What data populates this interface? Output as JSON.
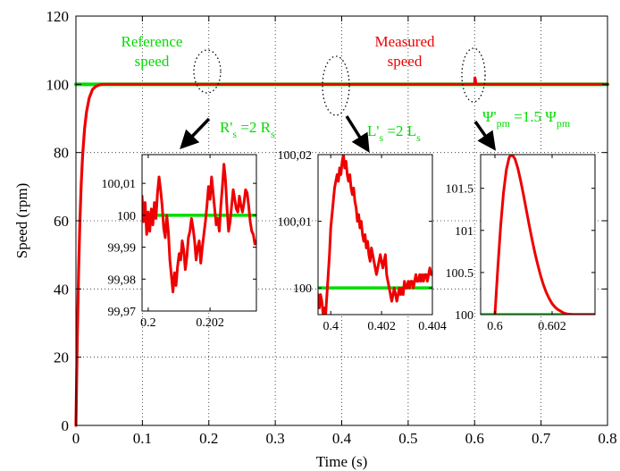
{
  "chart_data": {
    "type": "line",
    "xlabel": "Time (s)",
    "ylabel": "Speed (rpm)",
    "xlim": [
      0,
      0.8
    ],
    "ylim": [
      0,
      120
    ],
    "xticks": [
      0,
      0.1,
      0.2,
      0.3,
      0.4,
      0.5,
      0.6,
      0.7,
      0.8
    ],
    "xtick_labels": [
      "0",
      "0.1",
      "0.2",
      "0.3",
      "0.4",
      "0.5",
      "0.6",
      "0.7",
      "0.8"
    ],
    "yticks": [
      0,
      20,
      40,
      60,
      80,
      100,
      120
    ],
    "ytick_labels": [
      "0",
      "20",
      "40",
      "60",
      "80",
      "100",
      "120"
    ],
    "grid": true,
    "colors": {
      "reference": "#00dd00",
      "measured": "#ee0000",
      "arrow": "#000000"
    },
    "series": [
      {
        "name": "Reference speed",
        "color": "#00dd00",
        "x": [
          0,
          0.8
        ],
        "y": [
          100,
          100
        ]
      },
      {
        "name": "Measured speed",
        "color": "#ee0000",
        "x": [
          0,
          0.002,
          0.004,
          0.006,
          0.008,
          0.01,
          0.013,
          0.016,
          0.02,
          0.025,
          0.03,
          0.035,
          0.04,
          0.05,
          0.6,
          0.6005,
          0.601,
          0.602,
          0.8
        ],
        "y": [
          0,
          25,
          45,
          60,
          71,
          79,
          87,
          92,
          96,
          98.5,
          99.4,
          99.8,
          100,
          100,
          100,
          101.9,
          101.5,
          100,
          100
        ]
      }
    ],
    "annotations": [
      {
        "lines": [
          "Reference",
          "speed"
        ],
        "color": "#00dd00"
      },
      {
        "lines": [
          "Measured",
          "speed"
        ],
        "color": "#ee0000"
      },
      {
        "text": "R'",
        "sub1": "s",
        "mid": " =2 R",
        "sub2": "s",
        "color": "#00dd00"
      },
      {
        "text": "L'",
        "sub1": "s",
        "mid": " =2 L",
        "sub2": "s",
        "color": "#00dd00"
      },
      {
        "text": "Ψ'",
        "sub1": "pm",
        "mid": " =1.5 Ψ",
        "sub2": "pm",
        "color": "#00dd00"
      }
    ],
    "insets": [
      {
        "name": "inset-1",
        "xlim": [
          0.1998,
          0.2035
        ],
        "ylim": [
          99.97,
          100.019
        ],
        "xticks": [
          0.2,
          0.202
        ],
        "xtick_labels": [
          "0.2",
          "0.202"
        ],
        "yticks": [
          99.97,
          99.98,
          99.99,
          100,
          100.01
        ],
        "ytick_labels": [
          "99,97",
          "99,98",
          "99,99",
          "100",
          "100,01"
        ],
        "reference": 100,
        "measured": {
          "x": [
            0.1998,
            0.19985,
            0.1999,
            0.19995,
            0.2,
            0.20005,
            0.2001,
            0.20015,
            0.2002,
            0.20025,
            0.2003,
            0.20035,
            0.2004,
            0.20045,
            0.2005,
            0.20055,
            0.2006,
            0.20065,
            0.2007,
            0.20075,
            0.2008,
            0.20085,
            0.2009,
            0.20095,
            0.201,
            0.20105,
            0.2011,
            0.20115,
            0.2012,
            0.20125,
            0.2013,
            0.20135,
            0.2014,
            0.20145,
            0.2015,
            0.20155,
            0.2016,
            0.20165,
            0.2017,
            0.20175,
            0.2018,
            0.20185,
            0.2019,
            0.20195,
            0.202,
            0.20205,
            0.2021,
            0.20215,
            0.2022,
            0.20225,
            0.2023,
            0.20235,
            0.2024,
            0.20245,
            0.2025,
            0.20255,
            0.2026,
            0.20265,
            0.2027,
            0.20275,
            0.2028,
            0.20285,
            0.2029,
            0.20295,
            0.203,
            0.20305,
            0.2031,
            0.20315,
            0.2032,
            0.20325,
            0.2033,
            0.20335,
            0.2034,
            0.20345,
            0.2035
          ],
          "y": [
            100.006,
            99.998,
            100.004,
            99.994,
            100.001,
            99.995,
            100.002,
            99.997,
            100.004,
            99.999,
            100.007,
            100.012,
            100.008,
            100.003,
            99.996,
            99.993,
            100.0,
            99.995,
            99.986,
            99.981,
            99.976,
            99.982,
            99.978,
            99.984,
            99.988,
            99.986,
            99.992,
            99.989,
            99.983,
            99.987,
            99.993,
            99.995,
            99.999,
            99.996,
            99.992,
            99.986,
            99.99,
            99.992,
            99.985,
            99.99,
            99.994,
            99.998,
            100.003,
            100.009,
            100.005,
            100.012,
            100.007,
            100.002,
            99.997,
            99.999,
            99.995,
            100.003,
            100.009,
            100.016,
            100.011,
            100.002,
            99.995,
            99.998,
            100.003,
            100.008,
            100.005,
            100.002,
            100.001,
            100.006,
            100.003,
            100.001,
            100.004,
            100.008,
            100.007,
            100.003,
            99.998,
            99.995,
            99.994,
            99.991,
            99.992
          ]
        }
      },
      {
        "name": "inset-2",
        "xlim": [
          0.3995,
          0.404
        ],
        "ylim": [
          99.996,
          100.02
        ],
        "xticks": [
          0.4,
          0.402,
          0.404
        ],
        "xtick_labels": [
          "0.4",
          "0.402",
          "0.404"
        ],
        "yticks": [
          100,
          100.01,
          100.02
        ],
        "ytick_labels": [
          "100",
          "100,01",
          "100,02"
        ],
        "reference": 100,
        "measured": {
          "x": [
            0.3995,
            0.39955,
            0.3996,
            0.39965,
            0.3997,
            0.39975,
            0.3998,
            0.39985,
            0.3999,
            0.39995,
            0.4,
            0.40005,
            0.4001,
            0.40015,
            0.4002,
            0.40025,
            0.4003,
            0.40035,
            0.4004,
            0.40045,
            0.4005,
            0.40055,
            0.4006,
            0.40065,
            0.4007,
            0.40075,
            0.4008,
            0.40085,
            0.4009,
            0.40095,
            0.401,
            0.40105,
            0.4011,
            0.40115,
            0.4012,
            0.40125,
            0.4013,
            0.40135,
            0.4014,
            0.40145,
            0.4015,
            0.40155,
            0.4016,
            0.40165,
            0.4017,
            0.40175,
            0.4018,
            0.40185,
            0.4019,
            0.40195,
            0.402,
            0.40205,
            0.4021,
            0.40215,
            0.4022,
            0.40225,
            0.4023,
            0.40235,
            0.4024,
            0.40245,
            0.4025,
            0.40255,
            0.4026,
            0.40265,
            0.4027,
            0.40275,
            0.4028,
            0.40285,
            0.4029,
            0.40295,
            0.403,
            0.40305,
            0.4031,
            0.40315,
            0.4032,
            0.40325,
            0.4033,
            0.40335,
            0.4034,
            0.40345,
            0.4035,
            0.40355,
            0.4036,
            0.40365,
            0.4037,
            0.40375,
            0.4038,
            0.40385,
            0.4039,
            0.40395,
            0.404
          ],
          "y": [
            99.999,
            99.997,
            99.999,
            99.998,
            99.996,
            99.997,
            99.996,
            99.999,
            100.002,
            100.005,
            100.009,
            100.011,
            100.013,
            100.015,
            100.016,
            100.017,
            100.016,
            100.018,
            100.017,
            100.019,
            100.02,
            100.018,
            100.019,
            100.017,
            100.016,
            100.017,
            100.015,
            100.014,
            100.015,
            100.013,
            100.012,
            100.01,
            100.011,
            100.009,
            100.01,
            100.008,
            100.007,
            100.008,
            100.006,
            100.007,
            100.005,
            100.004,
            100.006,
            100.005,
            100.004,
            100.003,
            100.002,
            100.003,
            100.004,
            100.005,
            100.004,
            100.003,
            100.004,
            100.005,
            100.002,
            100.001,
            100.0,
            99.999,
            99.998,
            99.999,
            100.0,
            99.999,
            99.998,
            99.999,
            100.0,
            99.999,
            100.0,
            99.999,
            100.001,
            100.0,
            100.0,
            100.001,
            100.0,
            100.001,
            100.001,
            100.0,
            100.001,
            100.002,
            100.001,
            100.001,
            100.002,
            100.001,
            100.002,
            100.001,
            100.002,
            100.002,
            100.001,
            100.002,
            100.003,
            100.002,
            100.002
          ]
        }
      },
      {
        "name": "inset-3",
        "xlim": [
          0.5995,
          0.6035
        ],
        "ylim": [
          100,
          101.9
        ],
        "xticks": [
          0.6,
          0.602
        ],
        "xtick_labels": [
          "0.6",
          "0.602"
        ],
        "yticks": [
          100,
          100.5,
          101,
          101.5
        ],
        "ytick_labels": [
          "100",
          "100.5",
          "101",
          "101.5"
        ],
        "reference": 100,
        "measured": {
          "x": [
            0.6,
            0.6001,
            0.6002,
            0.6003,
            0.6004,
            0.6005,
            0.6006,
            0.6007,
            0.6008,
            0.6009,
            0.601,
            0.6011,
            0.6012,
            0.6013,
            0.6014,
            0.6015,
            0.6016,
            0.6017,
            0.6018,
            0.6019,
            0.602,
            0.6021,
            0.6022,
            0.6023,
            0.6024,
            0.6025,
            0.6026,
            0.6027,
            0.6028,
            0.603,
            0.6035
          ],
          "y": [
            100,
            100.55,
            101.05,
            101.45,
            101.72,
            101.87,
            101.9,
            101.85,
            101.74,
            101.59,
            101.42,
            101.24,
            101.06,
            100.89,
            100.73,
            100.59,
            100.46,
            100.35,
            100.26,
            100.19,
            100.13,
            100.09,
            100.06,
            100.04,
            100.02,
            100.01,
            100.005,
            100.002,
            100,
            100,
            100
          ]
        }
      }
    ]
  }
}
